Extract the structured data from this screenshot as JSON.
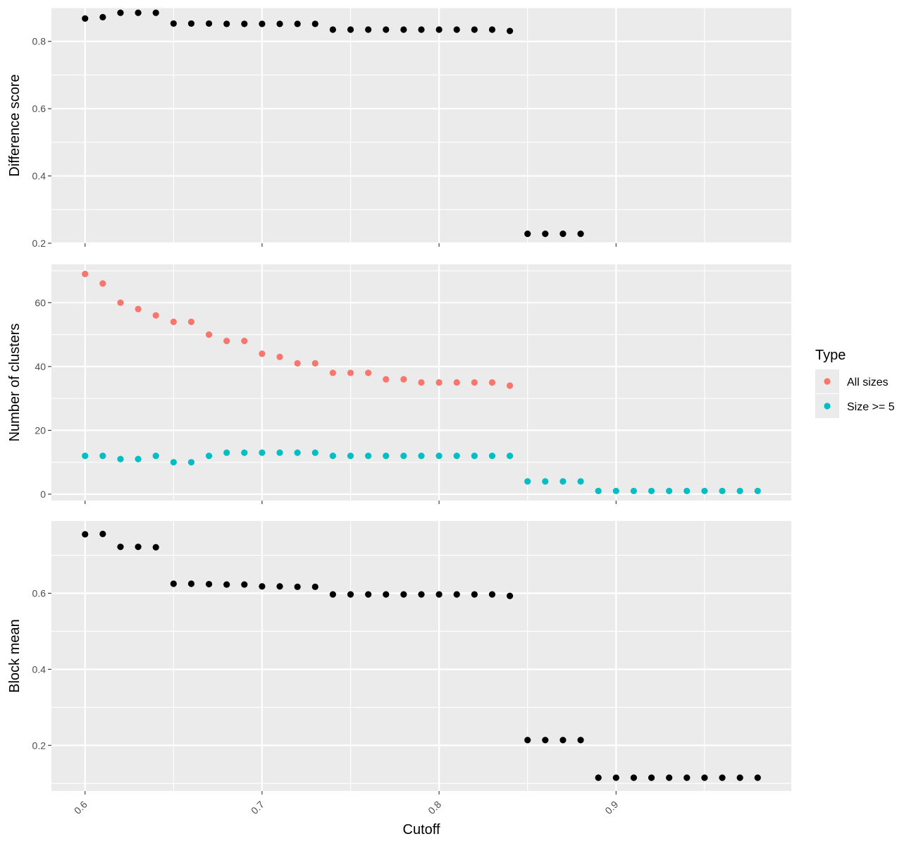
{
  "chart_data": [
    {
      "type": "scatter",
      "ylabel": "Difference score",
      "ylim": [
        0.2,
        0.9
      ],
      "y_ticks": [
        0.2,
        0.4,
        0.6,
        0.8
      ],
      "y_tick_labels": [
        "0.2",
        "0.4",
        "0.6",
        "0.8"
      ],
      "series": [
        {
          "color": "#000000",
          "x": [
            0.6,
            0.61,
            0.62,
            0.63,
            0.64,
            0.65,
            0.66,
            0.67,
            0.68,
            0.69,
            0.7,
            0.71,
            0.72,
            0.73,
            0.74,
            0.75,
            0.76,
            0.77,
            0.78,
            0.79,
            0.8,
            0.81,
            0.82,
            0.83,
            0.84,
            0.85,
            0.86,
            0.87,
            0.88
          ],
          "y": [
            0.868,
            0.872,
            0.885,
            0.885,
            0.885,
            0.853,
            0.853,
            0.853,
            0.852,
            0.852,
            0.852,
            0.852,
            0.852,
            0.852,
            0.835,
            0.835,
            0.835,
            0.835,
            0.835,
            0.835,
            0.835,
            0.835,
            0.835,
            0.835,
            0.831,
            0.228,
            0.228,
            0.228,
            0.228
          ]
        }
      ]
    },
    {
      "type": "scatter",
      "ylabel": "Number of clusters",
      "ylim": [
        -2,
        72
      ],
      "y_ticks": [
        0,
        20,
        40,
        60
      ],
      "y_tick_labels": [
        "0",
        "20",
        "40",
        "60"
      ],
      "legend": {
        "title": "Type",
        "placement": "right"
      },
      "series": [
        {
          "name": "All sizes",
          "color": "#F8766D",
          "x": [
            0.6,
            0.61,
            0.62,
            0.63,
            0.64,
            0.65,
            0.66,
            0.67,
            0.68,
            0.69,
            0.7,
            0.71,
            0.72,
            0.73,
            0.74,
            0.75,
            0.76,
            0.77,
            0.78,
            0.79,
            0.8,
            0.81,
            0.82,
            0.83,
            0.84
          ],
          "y": [
            69,
            66,
            60,
            58,
            56,
            54,
            54,
            50,
            48,
            48,
            44,
            43,
            41,
            41,
            38,
            38,
            38,
            36,
            36,
            35,
            35,
            35,
            35,
            35,
            34
          ]
        },
        {
          "name": "Size >= 5",
          "color": "#00BFC4",
          "x": [
            0.6,
            0.61,
            0.62,
            0.63,
            0.64,
            0.65,
            0.66,
            0.67,
            0.68,
            0.69,
            0.7,
            0.71,
            0.72,
            0.73,
            0.74,
            0.75,
            0.76,
            0.77,
            0.78,
            0.79,
            0.8,
            0.81,
            0.82,
            0.83,
            0.84,
            0.85,
            0.86,
            0.87,
            0.88,
            0.89,
            0.9,
            0.91,
            0.92,
            0.93,
            0.94,
            0.95,
            0.96,
            0.97,
            0.98
          ],
          "y": [
            12,
            12,
            11,
            11,
            12,
            10,
            10,
            12,
            13,
            13,
            13,
            13,
            13,
            13,
            12,
            12,
            12,
            12,
            12,
            12,
            12,
            12,
            12,
            12,
            12,
            4,
            4,
            4,
            4,
            1,
            1,
            1,
            1,
            1,
            1,
            1,
            1,
            1,
            1
          ]
        }
      ]
    },
    {
      "type": "scatter",
      "ylabel": "Block mean",
      "xlabel": "Cutoff",
      "ylim": [
        0.08,
        0.79
      ],
      "y_ticks": [
        0.2,
        0.4,
        0.6
      ],
      "y_tick_labels": [
        "0.2",
        "0.4",
        "0.6"
      ],
      "series": [
        {
          "color": "#000000",
          "x": [
            0.6,
            0.61,
            0.62,
            0.63,
            0.64,
            0.65,
            0.66,
            0.67,
            0.68,
            0.69,
            0.7,
            0.71,
            0.72,
            0.73,
            0.74,
            0.75,
            0.76,
            0.77,
            0.78,
            0.79,
            0.8,
            0.81,
            0.82,
            0.83,
            0.84,
            0.85,
            0.86,
            0.87,
            0.88,
            0.89,
            0.9,
            0.91,
            0.92,
            0.93,
            0.94,
            0.95,
            0.96,
            0.97,
            0.98
          ],
          "y": [
            0.755,
            0.756,
            0.722,
            0.722,
            0.721,
            0.625,
            0.625,
            0.624,
            0.623,
            0.623,
            0.618,
            0.618,
            0.617,
            0.617,
            0.597,
            0.597,
            0.597,
            0.597,
            0.597,
            0.597,
            0.597,
            0.597,
            0.597,
            0.597,
            0.593,
            0.214,
            0.214,
            0.214,
            0.214,
            0.115,
            0.115,
            0.115,
            0.115,
            0.115,
            0.115,
            0.115,
            0.115,
            0.115,
            0.115
          ]
        }
      ]
    }
  ],
  "x_axis": {
    "label": "Cutoff",
    "xlim": [
      0.581,
      0.999
    ],
    "ticks": [
      0.6,
      0.7,
      0.8,
      0.9
    ],
    "tick_labels": [
      "0.6",
      "0.7",
      "0.8",
      "0.9"
    ],
    "minor_ticks": [
      0.65,
      0.75,
      0.85,
      0.95
    ]
  },
  "style": {
    "panel_background": "#EBEBEB",
    "grid_color": "#FFFFFF",
    "tick_color": "#333333"
  }
}
